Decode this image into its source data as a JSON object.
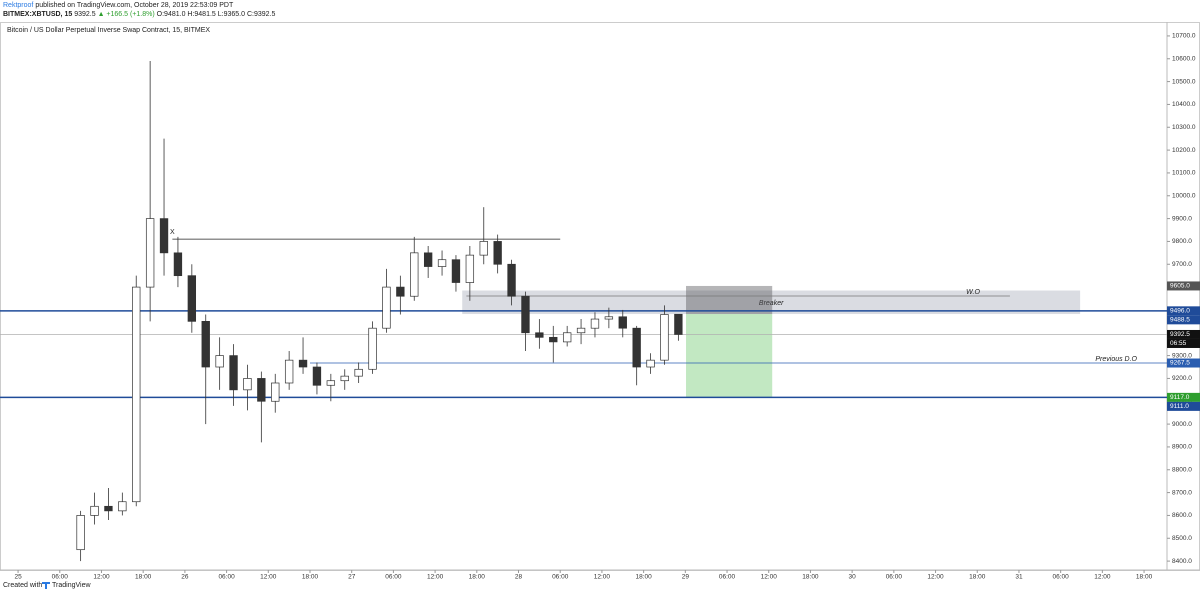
{
  "header": {
    "author": "Rektproof",
    "published": "published on TradingView.com, October 28, 2019 22:53:09 PDT",
    "symbol": "BITMEX:XBTUSD, 15",
    "last": "9392.5",
    "change": "▲ +166.5 (+1.8%)",
    "ohlc": "O:9481.0 H:9481.5 L:9365.0 C:9392.5"
  },
  "chart_data": {
    "type": "candlestick",
    "title": "Bitcoin / US Dollar Perpetual Inverse Swap Contract, 15, BITMEX",
    "x": [
      9,
      11,
      13,
      15,
      17,
      19,
      21,
      23,
      25,
      27,
      29,
      31,
      33,
      35,
      37,
      39,
      41,
      43,
      45,
      47,
      49,
      51,
      53,
      55,
      57,
      59,
      61,
      63,
      65,
      67,
      69,
      71,
      73,
      75,
      77,
      79,
      81,
      83,
      85,
      87,
      89,
      91,
      93,
      95
    ],
    "open": [
      8450,
      8600,
      8640,
      8620,
      8660,
      9600,
      9900,
      9750,
      9650,
      9450,
      9250,
      9300,
      9150,
      9200,
      9100,
      9180,
      9280,
      9250,
      9170,
      9190,
      9210,
      9240,
      9420,
      9600,
      9560,
      9750,
      9690,
      9720,
      9620,
      9740,
      9800,
      9700,
      9560,
      9400,
      9380,
      9360,
      9400,
      9420,
      9460,
      9470,
      9420,
      9250,
      9280,
      9481
    ],
    "high": [
      8620,
      8700,
      8720,
      8700,
      9650,
      10590,
      10250,
      9820,
      9700,
      9480,
      9380,
      9350,
      9260,
      9230,
      9220,
      9320,
      9380,
      9270,
      9220,
      9240,
      9270,
      9450,
      9680,
      9650,
      9820,
      9780,
      9760,
      9740,
      9780,
      9950,
      9830,
      9720,
      9580,
      9460,
      9430,
      9430,
      9460,
      9490,
      9510,
      9500,
      9430,
      9310,
      9520,
      9481.5
    ],
    "low": [
      8400,
      8560,
      8580,
      8600,
      8640,
      9450,
      9650,
      9600,
      9400,
      9000,
      9150,
      9080,
      9060,
      8920,
      9050,
      9150,
      9220,
      9130,
      9100,
      9150,
      9180,
      9220,
      9400,
      9480,
      9540,
      9640,
      9650,
      9580,
      9540,
      9700,
      9660,
      9520,
      9320,
      9330,
      9270,
      9340,
      9350,
      9380,
      9420,
      9380,
      9170,
      9220,
      9260,
      9365
    ],
    "close": [
      8600,
      8640,
      8620,
      8660,
      9600,
      9900,
      9750,
      9650,
      9450,
      9250,
      9300,
      9150,
      9200,
      9100,
      9180,
      9280,
      9250,
      9170,
      9190,
      9210,
      9240,
      9420,
      9600,
      9560,
      9750,
      9690,
      9720,
      9620,
      9740,
      9800,
      9700,
      9560,
      9400,
      9380,
      9360,
      9400,
      9420,
      9460,
      9470,
      9420,
      9250,
      9280,
      9480,
      9392.5
    ],
    "up_color": "#ffffff",
    "down_color": "#333333",
    "xlim": [
      -2.6,
      165.3
    ],
    "ylim": [
      8361,
      10761
    ],
    "xticks": [
      {
        "value": 0,
        "label": "25"
      },
      {
        "value": 6,
        "label": "06:00"
      },
      {
        "value": 12,
        "label": "12:00"
      },
      {
        "value": 18,
        "label": "18:00"
      },
      {
        "value": 24,
        "label": "26"
      },
      {
        "value": 30,
        "label": "06:00"
      },
      {
        "value": 36,
        "label": "12:00"
      },
      {
        "value": 42,
        "label": "18:00"
      },
      {
        "value": 48,
        "label": "27"
      },
      {
        "value": 54,
        "label": "06:00"
      },
      {
        "value": 60,
        "label": "12:00"
      },
      {
        "value": 66,
        "label": "18:00"
      },
      {
        "value": 72,
        "label": "28"
      },
      {
        "value": 78,
        "label": "06:00"
      },
      {
        "value": 84,
        "label": "12:00"
      },
      {
        "value": 90,
        "label": "18:00"
      },
      {
        "value": 96,
        "label": "29"
      },
      {
        "value": 102,
        "label": "06:00"
      },
      {
        "value": 108,
        "label": "12:00"
      },
      {
        "value": 114,
        "label": "18:00"
      },
      {
        "value": 120,
        "label": "30"
      },
      {
        "value": 126,
        "label": "06:00"
      },
      {
        "value": 132,
        "label": "12:00"
      },
      {
        "value": 138,
        "label": "18:00"
      },
      {
        "value": 144,
        "label": "31"
      },
      {
        "value": 150,
        "label": "06:00"
      },
      {
        "value": 156,
        "label": "12:00"
      },
      {
        "value": 162,
        "label": "18:00"
      }
    ],
    "yticks": [
      {
        "value": 8400,
        "label": "8400.0"
      },
      {
        "value": 8500,
        "label": "8500.0"
      },
      {
        "value": 8600,
        "label": "8600.0"
      },
      {
        "value": 8700,
        "label": "8700.0"
      },
      {
        "value": 8800,
        "label": "8800.0"
      },
      {
        "value": 8900,
        "label": "8900.0"
      },
      {
        "value": 9000,
        "label": "9000.0"
      },
      {
        "value": 9100,
        "label": "9100.0"
      },
      {
        "value": 9200,
        "label": "9200.0"
      },
      {
        "value": 9300,
        "label": "9300.0"
      },
      {
        "value": 9400,
        "label": "9400.0"
      },
      {
        "value": 9500,
        "label": "9500.0"
      },
      {
        "value": 9600,
        "label": "9600.0"
      },
      {
        "value": 9700,
        "label": "9700.0"
      },
      {
        "value": 9800,
        "label": "9800.0"
      },
      {
        "value": 9900,
        "label": "9900.0"
      },
      {
        "value": 10000,
        "label": "10000.0"
      },
      {
        "value": 10100,
        "label": "10100.0"
      },
      {
        "value": 10200,
        "label": "10200.0"
      },
      {
        "value": 10300,
        "label": "10300.0"
      },
      {
        "value": 10400,
        "label": "10400.0"
      },
      {
        "value": 10500,
        "label": "10500.0"
      },
      {
        "value": 10600,
        "label": "10600.0"
      },
      {
        "value": 10700,
        "label": "10700.0"
      }
    ],
    "grid": false,
    "zones": [
      {
        "label": "Breaker",
        "x": [
          63.9,
          152.8
        ],
        "y": [
          9482,
          9585
        ],
        "color": "rgba(140,146,165,0.32)"
      },
      {
        "x": [
          96.1,
          108.5
        ],
        "y": [
          9482,
          9605
        ],
        "color": "rgba(90,90,95,0.45)"
      },
      {
        "x": [
          96.1,
          108.5
        ],
        "y": [
          9117,
          9482
        ],
        "color": "rgba(120,205,120,0.45)"
      }
    ],
    "lines": [
      {
        "value": 9496,
        "color": "#1f4b99",
        "width": 1.5
      },
      {
        "value": 9117,
        "color": "#1f4b99",
        "width": 1.5
      },
      {
        "value": 9392.5,
        "color": "#b0b0b0",
        "width": 0.8
      },
      {
        "value": 9267.5,
        "color": "#2a5db0",
        "width": 0.8,
        "x": [
          42,
          165.3
        ],
        "label": "Previous D.O",
        "label_side": "end"
      },
      {
        "value": 9810,
        "color": "#222222",
        "width": 0.8,
        "x": [
          22.2,
          78
        ],
        "label": "X",
        "label_side": "start"
      },
      {
        "value": 9561,
        "color": "#777777",
        "width": 0.8,
        "x": [
          64.5,
          142.7
        ],
        "label": "W.O",
        "label_side": "end"
      }
    ],
    "price_labels": [
      {
        "value": 9605,
        "label": "9605.0",
        "color": "#555555"
      },
      {
        "value": 9496,
        "label": "9496.0",
        "color": "#1f4b99"
      },
      {
        "value": 9488.5,
        "label": "9488.5",
        "color": "#1f4b99"
      },
      {
        "value": 9392.5,
        "label": "9392.5",
        "color": "#111111",
        "countdown": "06:55"
      },
      {
        "value": 9267.5,
        "label": "9267.5",
        "color": "#2a5db0"
      },
      {
        "value": 9117,
        "label": "9117.0",
        "color": "#2e9e2e"
      },
      {
        "value": 9111,
        "label": "9111.0",
        "color": "#1f4b99"
      }
    ]
  },
  "footer": {
    "text": "Created with",
    "brand": "TradingView"
  }
}
